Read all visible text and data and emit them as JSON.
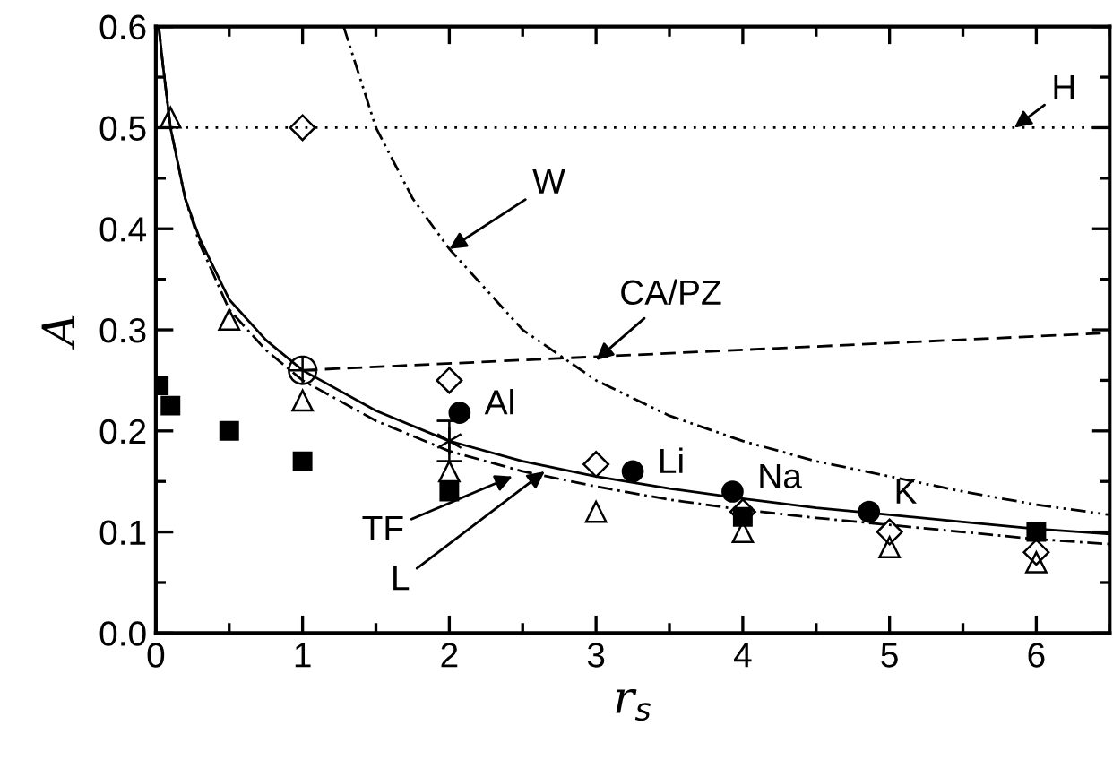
{
  "chart_data": {
    "type": "line",
    "xlabel": "r$_{s}$",
    "ylabel": "A",
    "xlim": [
      0,
      6.5
    ],
    "xticks": [
      0,
      1,
      2,
      3,
      4,
      5,
      6
    ],
    "ylim": [
      0,
      0.6
    ],
    "yticks": [
      {
        "value": 0,
        "label": "0.0"
      },
      0.1,
      0.2,
      0.3,
      0.4,
      0.5,
      0.6
    ],
    "grid": false,
    "series": [
      {
        "line_style": "solid",
        "color": "#000000",
        "x": [
          0.02,
          0.05,
          0.1,
          0.2,
          0.3,
          0.5,
          0.75,
          1,
          1.5,
          2,
          2.5,
          3,
          3.5,
          4,
          4.5,
          5,
          5.5,
          6,
          6.5
        ],
        "values": [
          0.6,
          0.56,
          0.5,
          0.43,
          0.39,
          0.33,
          0.29,
          0.26,
          0.22,
          0.19,
          0.17,
          0.155,
          0.143,
          0.133,
          0.124,
          0.117,
          0.11,
          0.103,
          0.098
        ]
      },
      {
        "line_style": "dashdot",
        "color": "#000000",
        "x": [
          0.02,
          0.05,
          0.1,
          0.2,
          0.3,
          0.5,
          0.75,
          1,
          1.5,
          2,
          2.5,
          3,
          3.5,
          4,
          4.5,
          5,
          5.5,
          6,
          6.5
        ],
        "values": [
          0.6,
          0.56,
          0.5,
          0.43,
          0.385,
          0.32,
          0.28,
          0.25,
          0.21,
          0.18,
          0.16,
          0.145,
          0.132,
          0.122,
          0.114,
          0.107,
          0.1,
          0.093,
          0.088
        ]
      },
      {
        "line_style": "dashdotdot",
        "color": "#000000",
        "x": [
          1.28,
          1.5,
          1.75,
          2,
          2.5,
          3,
          3.5,
          4,
          4.5,
          5,
          5.5,
          6,
          6.5
        ],
        "values": [
          0.6,
          0.5,
          0.43,
          0.38,
          0.3,
          0.25,
          0.215,
          0.19,
          0.17,
          0.155,
          0.14,
          0.127,
          0.117
        ]
      },
      {
        "line_style": "dotted",
        "color": "#000000",
        "x": [
          0,
          6.5
        ],
        "values": [
          0.5,
          0.5
        ]
      },
      {
        "line_style": "dashed",
        "color": "#000000",
        "x": [
          1,
          6.5
        ],
        "values": [
          0.26,
          0.297
        ]
      },
      {
        "type": "scatter",
        "marker": "triangle",
        "color": "#000000",
        "x": [
          0.1,
          0.5,
          1,
          2,
          3,
          4,
          5,
          6
        ],
        "values": [
          0.51,
          0.31,
          0.23,
          0.16,
          0.12,
          0.1,
          0.085,
          0.07
        ]
      },
      {
        "type": "scatter",
        "marker": "diamond",
        "color": "#000000",
        "x": [
          1,
          2,
          3,
          4,
          5,
          6
        ],
        "values": [
          0.5,
          0.25,
          0.167,
          0.12,
          0.1,
          0.08
        ]
      },
      {
        "type": "scatter",
        "marker": "square",
        "color": "#000000",
        "x": [
          0.02,
          0.1,
          0.5,
          1,
          2,
          4,
          6
        ],
        "values": [
          0.245,
          0.225,
          0.2,
          0.17,
          0.14,
          0.115,
          0.1
        ]
      },
      {
        "type": "scatter",
        "marker": "circle",
        "color": "#000000",
        "x": [
          2.07,
          3.25,
          3.93,
          4.86
        ],
        "values": [
          0.218,
          0.16,
          0.14,
          0.12
        ]
      },
      {
        "type": "scatter",
        "marker": "cross",
        "color": "#000000",
        "x": [
          1
        ],
        "values": [
          0.26
        ]
      },
      {
        "type": "scatter",
        "marker": "cross",
        "color": "#000000",
        "x": [
          2
        ],
        "values": [
          0.19
        ],
        "errors": [
          0.02
        ]
      }
    ],
    "annotations": [
      {
        "text": "W",
        "x": 2.0,
        "y": 0.38
      },
      {
        "text": "H",
        "x": 5.85,
        "y": 0.5
      },
      {
        "text": "CA/PZ",
        "x": 3.0,
        "y": 0.27
      },
      {
        "text": "TF",
        "x": 2.43,
        "y": 0.155
      },
      {
        "text": "L",
        "x": 2.65,
        "y": 0.16
      },
      {
        "text": "Al",
        "x": 2.07,
        "y": 0.218
      },
      {
        "text": "Li",
        "x": 3.25,
        "y": 0.16
      },
      {
        "text": "Na",
        "x": 3.93,
        "y": 0.14
      },
      {
        "text": "K",
        "x": 4.86,
        "y": 0.12
      }
    ]
  }
}
